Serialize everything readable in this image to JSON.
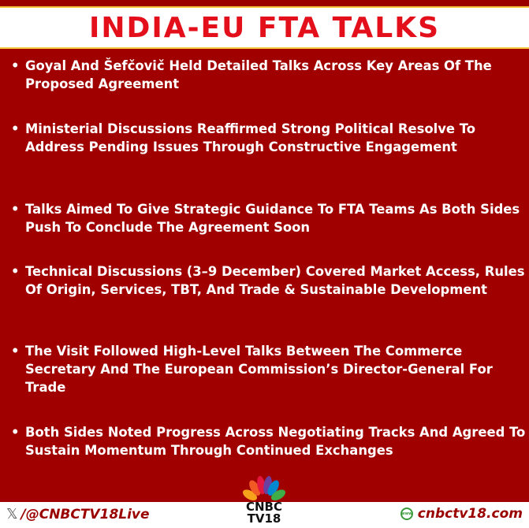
{
  "title": "INDIA-EU FTA TALKS",
  "bullets": [
    "Goyal And Šefčovič Held Detailed Talks Across Key Areas Of The Proposed Agreement",
    "Ministerial Discussions Reaffirmed Strong Political Resolve To Address Pending Issues Through Constructive Engagement",
    "Talks Aimed To Give Strategic Guidance To FTA Teams As Both Sides Push To Conclude The Agreement Soon",
    "Technical Discussions (3–9 December) Covered Market Access, Rules Of Origin, Services, TBT, And Trade & Sustainable Development",
    "The Visit Followed High-Level Talks Between The Commerce Secretary And The European Commission’s Director-General For Trade",
    "Both Sides Noted Progress Across Negotiating Tracks And Agreed To Sustain Momentum Through Continued Exchanges"
  ],
  "footer": {
    "handle": "/@CNBCTV18Live",
    "website": "cnbctv18.com",
    "logo_line1": "CNBC",
    "logo_line2": "TV18",
    "x_icon": "𝕏",
    "www_icon": "www"
  },
  "colors": {
    "background": "#a10000",
    "title": "#e3101c",
    "accent": "#f5c842"
  }
}
